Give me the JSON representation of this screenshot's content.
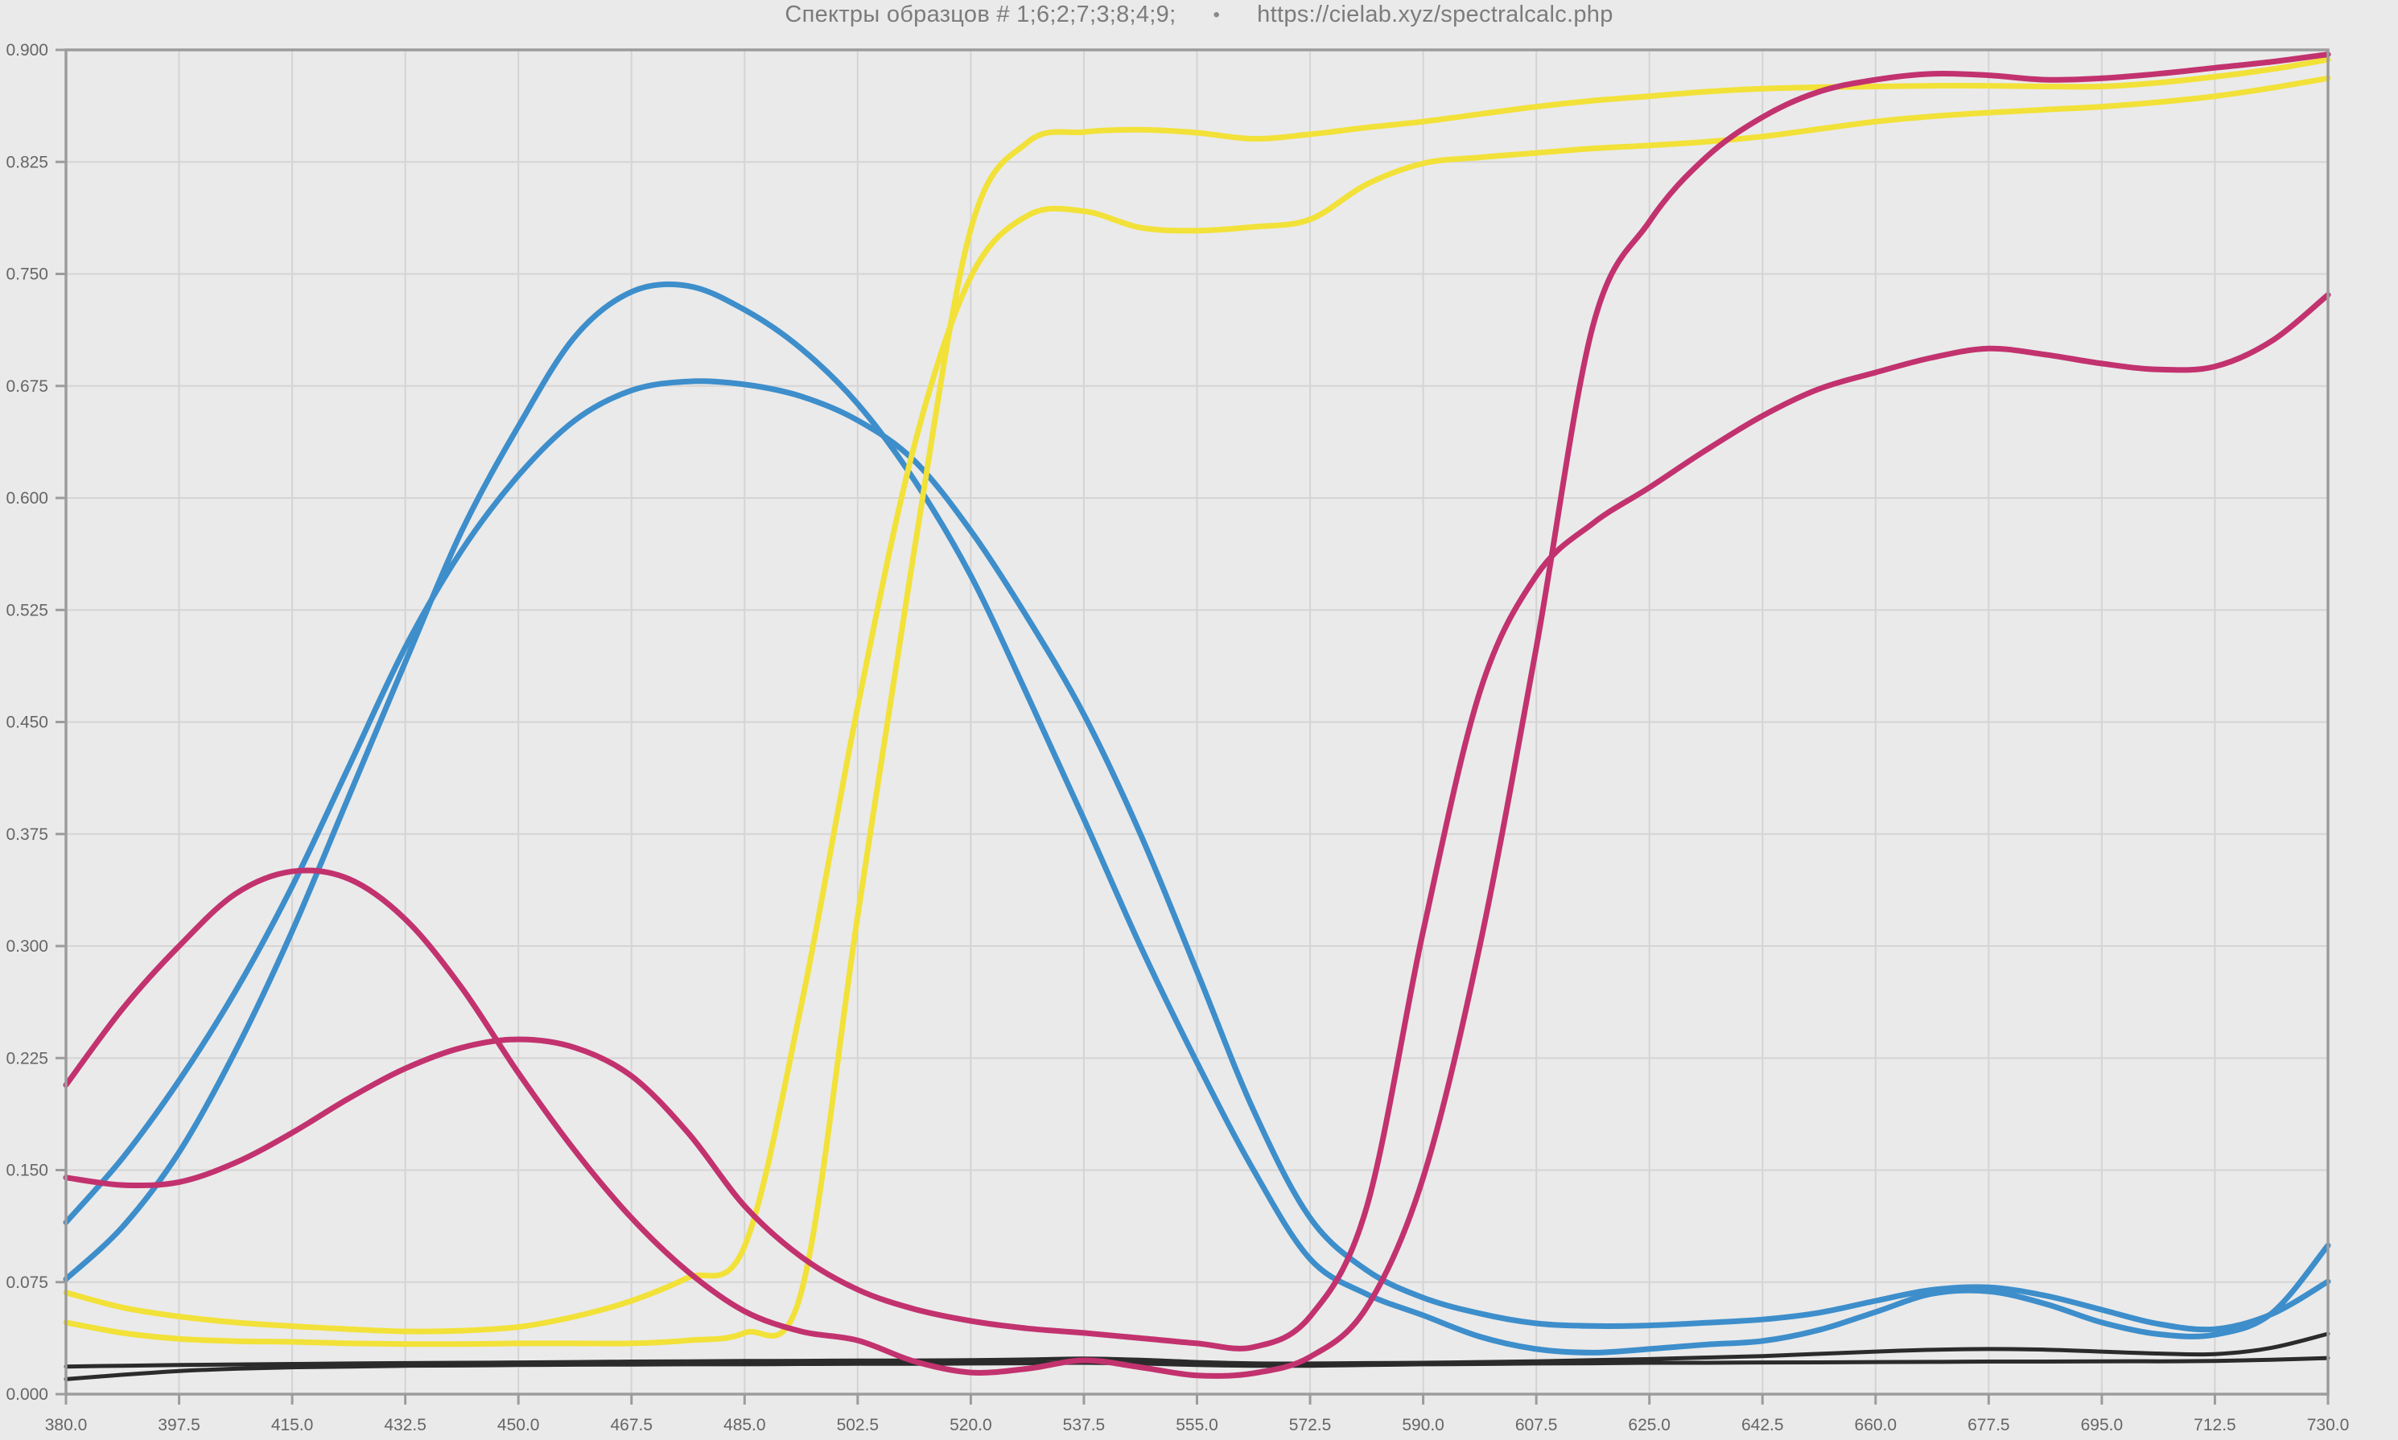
{
  "header": {
    "title": "Спектры образцов # 1;6;2;7;3;8;4;9;",
    "separator": "•",
    "url": "https://cielab.xyz/spectralcalc.php"
  },
  "colors": {
    "background": "#eaeaea",
    "grid": "#d4d4d4",
    "border": "#9c9c9c",
    "tick_text": "#666666",
    "title_text": "#7c7c7c",
    "cyan": "#3d8ecb",
    "magenta": "#c2326e",
    "yellow": "#f2e138",
    "black": "#2b2b2b"
  },
  "chart_data": {
    "type": "line",
    "title": "Спектры образцов # 1;6;2;7;3;8;4;9;",
    "subtitle": "https://cielab.xyz/spectralcalc.php",
    "xlabel": "",
    "ylabel": "",
    "xlim": [
      380.0,
      730.0
    ],
    "ylim": [
      0.0,
      0.9
    ],
    "grid": true,
    "legend_position": "none",
    "x_tick_labels": [
      "380.0",
      "397.5",
      "415.0",
      "432.5",
      "450.0",
      "467.5",
      "485.0",
      "502.5",
      "520.0",
      "537.5",
      "555.0",
      "572.5",
      "590.0",
      "607.5",
      "625.0",
      "642.5",
      "660.0",
      "677.5",
      "695.0",
      "712.5",
      "730.0"
    ],
    "y_tick_labels": [
      "0.000",
      "0.075",
      "0.150",
      "0.225",
      "0.300",
      "0.375",
      "0.450",
      "0.525",
      "0.600",
      "0.675",
      "0.750",
      "0.825",
      "0.900"
    ],
    "samples_listed_in_title": [
      "1",
      "6",
      "2",
      "7",
      "3",
      "8",
      "4",
      "9"
    ],
    "x": [
      380,
      388.75,
      397.5,
      406.25,
      415,
      423.75,
      432.5,
      441.25,
      450,
      458.75,
      467.5,
      476.25,
      485,
      493.75,
      502.5,
      511.25,
      520,
      528.75,
      537.5,
      546.25,
      555,
      563.75,
      572.5,
      581.25,
      590,
      598.75,
      607.5,
      616.25,
      625,
      633.75,
      642.5,
      651.25,
      660,
      668.75,
      677.5,
      686.25,
      695,
      703.75,
      712.5,
      721.25,
      730
    ],
    "series": [
      {
        "name": "black-b",
        "color": "#2b2b2b",
        "width": 5,
        "values": [
          0.01,
          0.013,
          0.0155,
          0.017,
          0.018,
          0.0185,
          0.019,
          0.0192,
          0.0195,
          0.0197,
          0.0198,
          0.02,
          0.02,
          0.0202,
          0.0203,
          0.0203,
          0.0205,
          0.0207,
          0.021,
          0.0205,
          0.0195,
          0.019,
          0.019,
          0.0195,
          0.02,
          0.0202,
          0.0205,
          0.0207,
          0.021,
          0.021,
          0.0212,
          0.0213,
          0.0215,
          0.0216,
          0.0218,
          0.0218,
          0.022,
          0.022,
          0.0222,
          0.023,
          0.0242
        ]
      },
      {
        "name": "black-a",
        "color": "#2b2b2b",
        "width": 5,
        "values": [
          0.0185,
          0.019,
          0.0195,
          0.0199,
          0.0202,
          0.0205,
          0.0208,
          0.021,
          0.0212,
          0.0215,
          0.0218,
          0.022,
          0.0222,
          0.0223,
          0.0225,
          0.0225,
          0.0228,
          0.0232,
          0.0238,
          0.023,
          0.0215,
          0.0206,
          0.0205,
          0.0208,
          0.021,
          0.0215,
          0.022,
          0.0228,
          0.0235,
          0.0245,
          0.0255,
          0.027,
          0.0285,
          0.0297,
          0.0302,
          0.0298,
          0.0285,
          0.0272,
          0.0268,
          0.031,
          0.0404
        ]
      },
      {
        "name": "cyan-a",
        "color": "#3d8ecb",
        "width": 7,
        "values": [
          0.115,
          0.158,
          0.21,
          0.27,
          0.34,
          0.42,
          0.5,
          0.565,
          0.615,
          0.652,
          0.672,
          0.678,
          0.676,
          0.668,
          0.652,
          0.625,
          0.578,
          0.52,
          0.455,
          0.375,
          0.283,
          0.19,
          0.118,
          0.083,
          0.0646,
          0.054,
          0.0474,
          0.0456,
          0.046,
          0.0478,
          0.05,
          0.0545,
          0.0625,
          0.0698,
          0.0715,
          0.066,
          0.0565,
          0.047,
          0.0435,
          0.0535,
          0.0754
        ]
      },
      {
        "name": "cyan-b",
        "color": "#3d8ecb",
        "width": 7,
        "values": [
          0.077,
          0.112,
          0.162,
          0.23,
          0.31,
          0.4,
          0.49,
          0.578,
          0.648,
          0.708,
          0.738,
          0.742,
          0.726,
          0.7,
          0.663,
          0.612,
          0.548,
          0.468,
          0.385,
          0.3,
          0.222,
          0.15,
          0.0905,
          0.067,
          0.0528,
          0.0385,
          0.0302,
          0.0278,
          0.0302,
          0.0332,
          0.0356,
          0.043,
          0.055,
          0.0672,
          0.0688,
          0.0605,
          0.048,
          0.0402,
          0.0398,
          0.054,
          0.0996
        ]
      },
      {
        "name": "yellow-a",
        "color": "#f2e138",
        "width": 7,
        "values": [
          0.068,
          0.058,
          0.052,
          0.048,
          0.0455,
          0.0435,
          0.042,
          0.0425,
          0.045,
          0.052,
          0.0625,
          0.078,
          0.099,
          0.26,
          0.46,
          0.635,
          0.748,
          0.789,
          0.792,
          0.781,
          0.779,
          0.7815,
          0.7865,
          0.81,
          0.824,
          0.828,
          0.831,
          0.834,
          0.836,
          0.8385,
          0.842,
          0.847,
          0.852,
          0.8555,
          0.858,
          0.86,
          0.862,
          0.865,
          0.869,
          0.8745,
          0.881
        ]
      },
      {
        "name": "yellow-b",
        "color": "#f2e138",
        "width": 7,
        "values": [
          0.048,
          0.041,
          0.037,
          0.0355,
          0.035,
          0.034,
          0.0335,
          0.0335,
          0.034,
          0.034,
          0.034,
          0.036,
          0.041,
          0.068,
          0.32,
          0.565,
          0.78,
          0.838,
          0.845,
          0.8465,
          0.8445,
          0.8405,
          0.8435,
          0.848,
          0.852,
          0.857,
          0.862,
          0.866,
          0.869,
          0.872,
          0.874,
          0.875,
          0.8755,
          0.876,
          0.876,
          0.8755,
          0.8755,
          0.878,
          0.882,
          0.887,
          0.8935
        ]
      },
      {
        "name": "magenta-b",
        "color": "#c2326e",
        "width": 7,
        "values": [
          0.145,
          0.14,
          0.142,
          0.155,
          0.175,
          0.198,
          0.218,
          0.232,
          0.2375,
          0.232,
          0.213,
          0.175,
          0.126,
          0.092,
          0.07,
          0.057,
          0.049,
          0.044,
          0.041,
          0.0375,
          0.034,
          0.0315,
          0.052,
          0.125,
          0.31,
          0.47,
          0.548,
          0.583,
          0.607,
          0.632,
          0.655,
          0.673,
          0.684,
          0.694,
          0.7,
          0.696,
          0.69,
          0.686,
          0.688,
          0.705,
          0.736
        ]
      },
      {
        "name": "magenta-a",
        "color": "#c2326e",
        "width": 7,
        "values": [
          0.207,
          0.258,
          0.3,
          0.335,
          0.35,
          0.345,
          0.318,
          0.272,
          0.215,
          0.163,
          0.118,
          0.082,
          0.0555,
          0.042,
          0.036,
          0.022,
          0.0145,
          0.017,
          0.0226,
          0.018,
          0.0125,
          0.014,
          0.025,
          0.058,
          0.145,
          0.3,
          0.5,
          0.715,
          0.785,
          0.828,
          0.855,
          0.872,
          0.88,
          0.884,
          0.883,
          0.88,
          0.881,
          0.884,
          0.888,
          0.892,
          0.897
        ]
      }
    ]
  }
}
